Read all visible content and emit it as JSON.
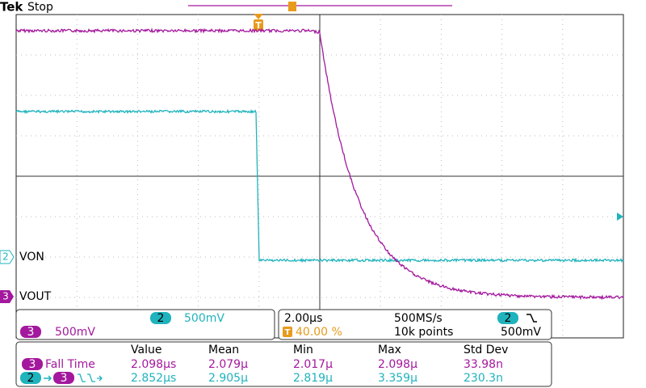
{
  "header": {
    "brand": "Tek",
    "status": "Stop"
  },
  "channels": [
    {
      "number": "2",
      "label": "VON"
    },
    {
      "number": "3",
      "label": "VOUT"
    }
  ],
  "vertical": [
    {
      "channel": "2",
      "scale": "500mV"
    },
    {
      "channel": "3",
      "scale": "500mV"
    }
  ],
  "horizontal": {
    "scale": "2.00µs",
    "sample_rate": "500MS/s",
    "trigger_position": "40.00 %",
    "record_length": "10k points",
    "trigger_channel": "2",
    "trigger_level": "500mV"
  },
  "measurements": {
    "columns": [
      "Value",
      "Mean",
      "Min",
      "Max",
      "Std Dev"
    ],
    "rows": [
      {
        "source": "3",
        "name": "Fall Time",
        "cells": [
          "2.098µs",
          "2.079µ",
          "2.017µ",
          "2.098µ",
          "33.98n"
        ]
      },
      {
        "source": "2",
        "target": "3",
        "cells": [
          "2.852µs",
          "2.905µ",
          "2.819µ",
          "3.359µ",
          "230.3n"
        ]
      }
    ]
  }
}
